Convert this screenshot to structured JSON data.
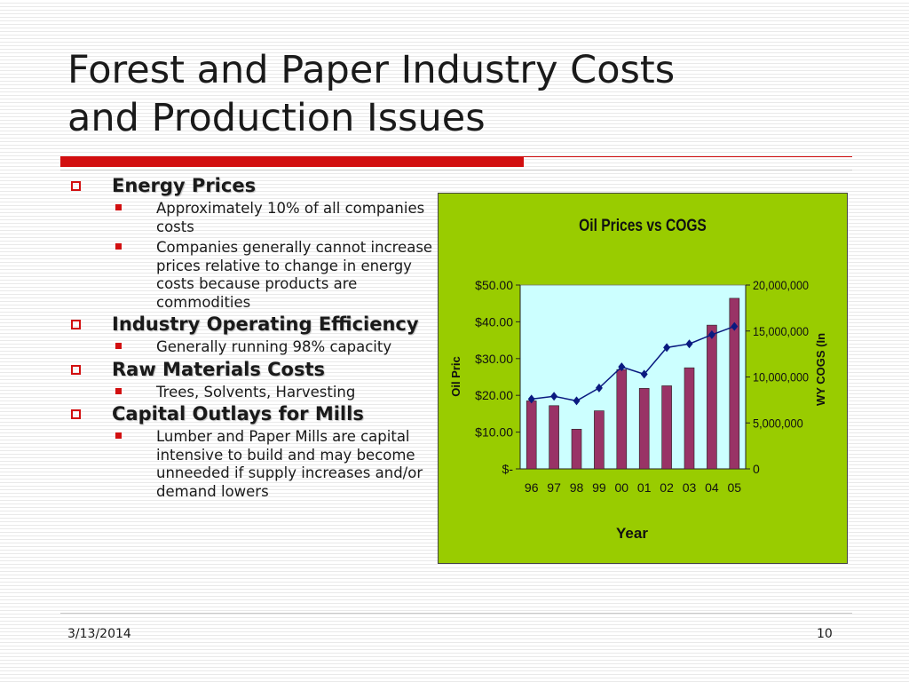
{
  "slide": {
    "title_line1": "Forest and Paper Industry Costs",
    "title_line2": "and Production Issues"
  },
  "bullets": [
    {
      "label": "Energy Prices",
      "subs": [
        "Approximately 10% of all companies costs",
        "Companies generally cannot increase prices relative to change in energy costs because products are commodities"
      ]
    },
    {
      "label": "Industry Operating Efficiency",
      "subs": [
        "Generally running 98% capacity"
      ]
    },
    {
      "label": "Raw Materials Costs",
      "subs": [
        "Trees, Solvents, Harvesting"
      ]
    },
    {
      "label": "Capital Outlays for Mills",
      "subs": [
        "Lumber and Paper Mills are capital intensive to build and may become unneeded if supply increases and/or demand lowers"
      ]
    }
  ],
  "footer": {
    "date": "3/13/2014",
    "page": "10"
  },
  "chart_data": {
    "type": "bar",
    "title": "Oil Prices vs COGS",
    "xlabel": "Year",
    "ylabel": "Oil Pric",
    "y2label": "WY COGS (In",
    "categories": [
      "96",
      "97",
      "98",
      "99",
      "00",
      "01",
      "02",
      "03",
      "04",
      "05"
    ],
    "ylim": [
      0,
      50
    ],
    "y_ticks": [
      "$-",
      "$10.00",
      "$20.00",
      "$30.00",
      "$40.00",
      "$50.00"
    ],
    "y2lim": [
      0,
      20000000
    ],
    "y2_ticks": [
      "0",
      "5,000,000",
      "10,000,000",
      "15,000,000",
      "20,000,000"
    ],
    "series": [
      {
        "type": "bar",
        "axis": "left",
        "values": [
          18.5,
          17.2,
          10.8,
          15.8,
          27.0,
          21.9,
          22.6,
          27.5,
          39.1,
          46.4
        ],
        "color": "#993366"
      },
      {
        "type": "line",
        "axis": "right",
        "values": [
          7600000,
          7900000,
          7400000,
          8800000,
          11100000,
          10300000,
          13200000,
          13600000,
          14600000,
          15500000
        ],
        "color": "#0a1a80"
      }
    ],
    "background": "#99cc00",
    "plot_background": "#ccffff",
    "grid": false,
    "legend": "none"
  }
}
